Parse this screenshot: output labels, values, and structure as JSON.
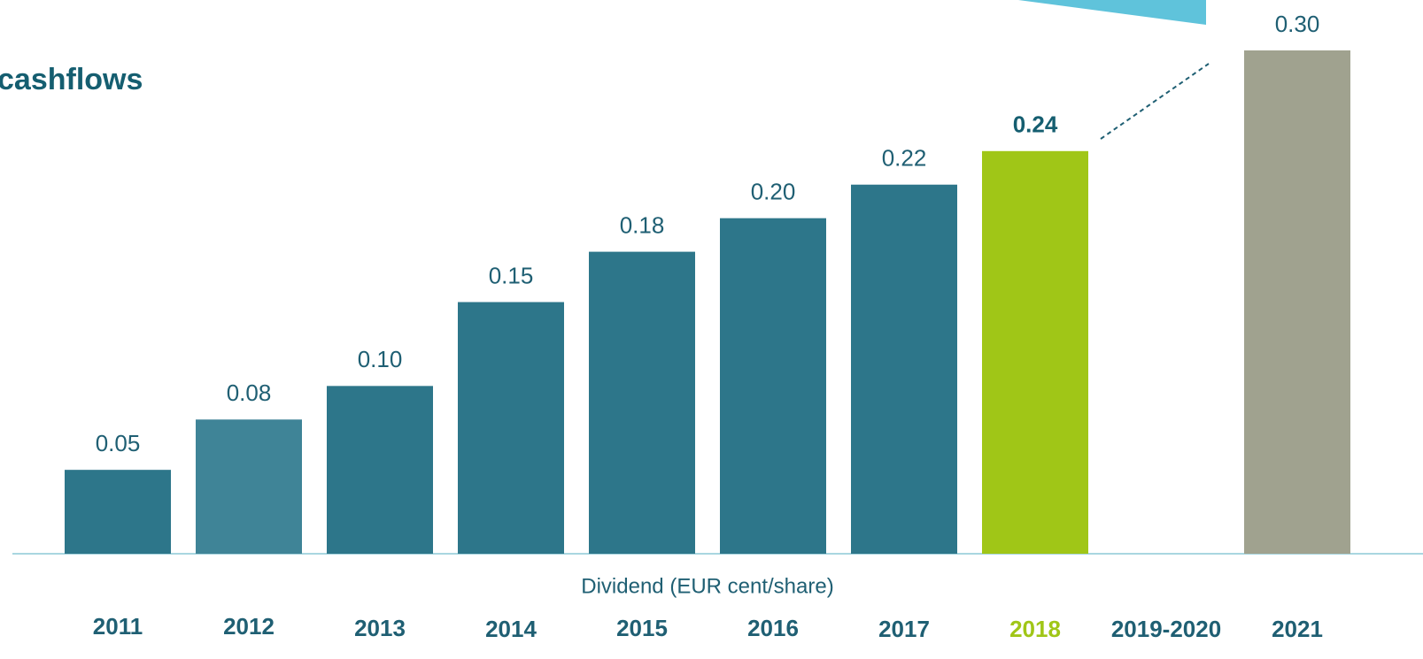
{
  "chart_data": {
    "type": "bar",
    "title": "cashflows",
    "x_label": "Dividend (EUR cent/share)",
    "categories": [
      "2011",
      "2012",
      "2013",
      "2014",
      "2015",
      "2016",
      "2017",
      "2018",
      "2019-2020",
      "2021"
    ],
    "values": [
      0.05,
      0.08,
      0.1,
      0.15,
      0.18,
      0.2,
      0.22,
      0.24,
      null,
      0.3
    ],
    "value_labels": [
      "0.05",
      "0.08",
      "0.10",
      "0.15",
      "0.18",
      "0.20",
      "0.22",
      "0.24",
      null,
      "0.30"
    ],
    "colors": [
      "#2d768a",
      "#3f8497",
      "#2d768a",
      "#2d768a",
      "#2d768a",
      "#2d768a",
      "#2d768a",
      "#a0c617",
      null,
      "#a0a28f"
    ],
    "ylim": [
      0,
      0.3
    ]
  }
}
